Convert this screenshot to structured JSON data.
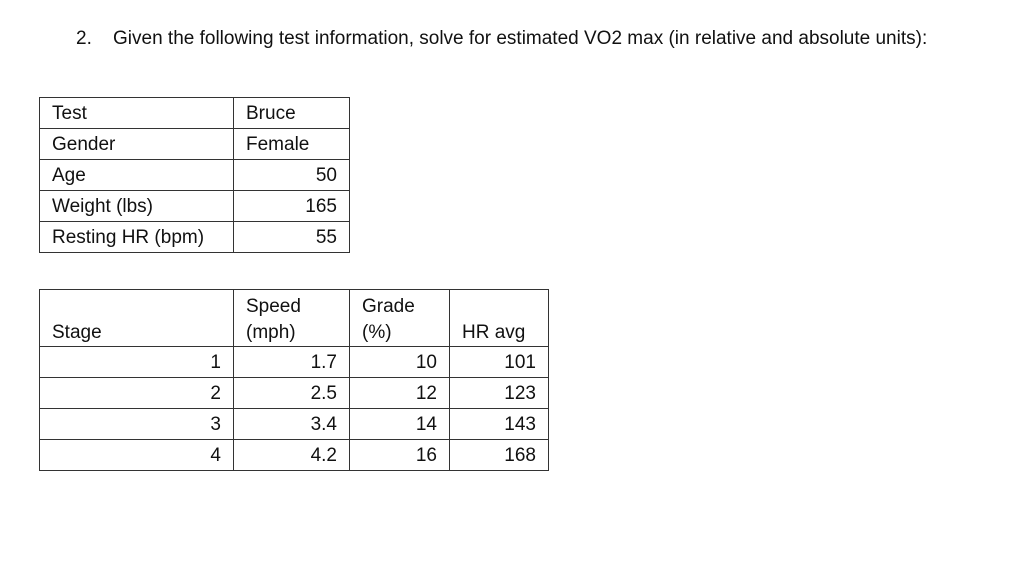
{
  "question": {
    "number": "2.",
    "text": "Given the following test information, solve for estimated VO2 max (in relative and absolute units):"
  },
  "info_table": [
    {
      "label": "Test",
      "value": "Bruce"
    },
    {
      "label": "Gender",
      "value": "Female"
    },
    {
      "label": "Age",
      "value": "50"
    },
    {
      "label": "Weight (lbs)",
      "value": "165"
    },
    {
      "label": "Resting HR (bpm)",
      "value": "55"
    }
  ],
  "stage_table": {
    "headers": {
      "stage": "Stage",
      "speed_line1": "Speed",
      "speed_line2": "(mph)",
      "grade_line1": "Grade",
      "grade_line2": "(%)",
      "hr": "HR avg"
    },
    "rows": [
      {
        "stage": "1",
        "speed": "1.7",
        "grade": "10",
        "hr": "101"
      },
      {
        "stage": "2",
        "speed": "2.5",
        "grade": "12",
        "hr": "123"
      },
      {
        "stage": "3",
        "speed": "3.4",
        "grade": "14",
        "hr": "143"
      },
      {
        "stage": "4",
        "speed": "4.2",
        "grade": "16",
        "hr": "168"
      }
    ]
  }
}
